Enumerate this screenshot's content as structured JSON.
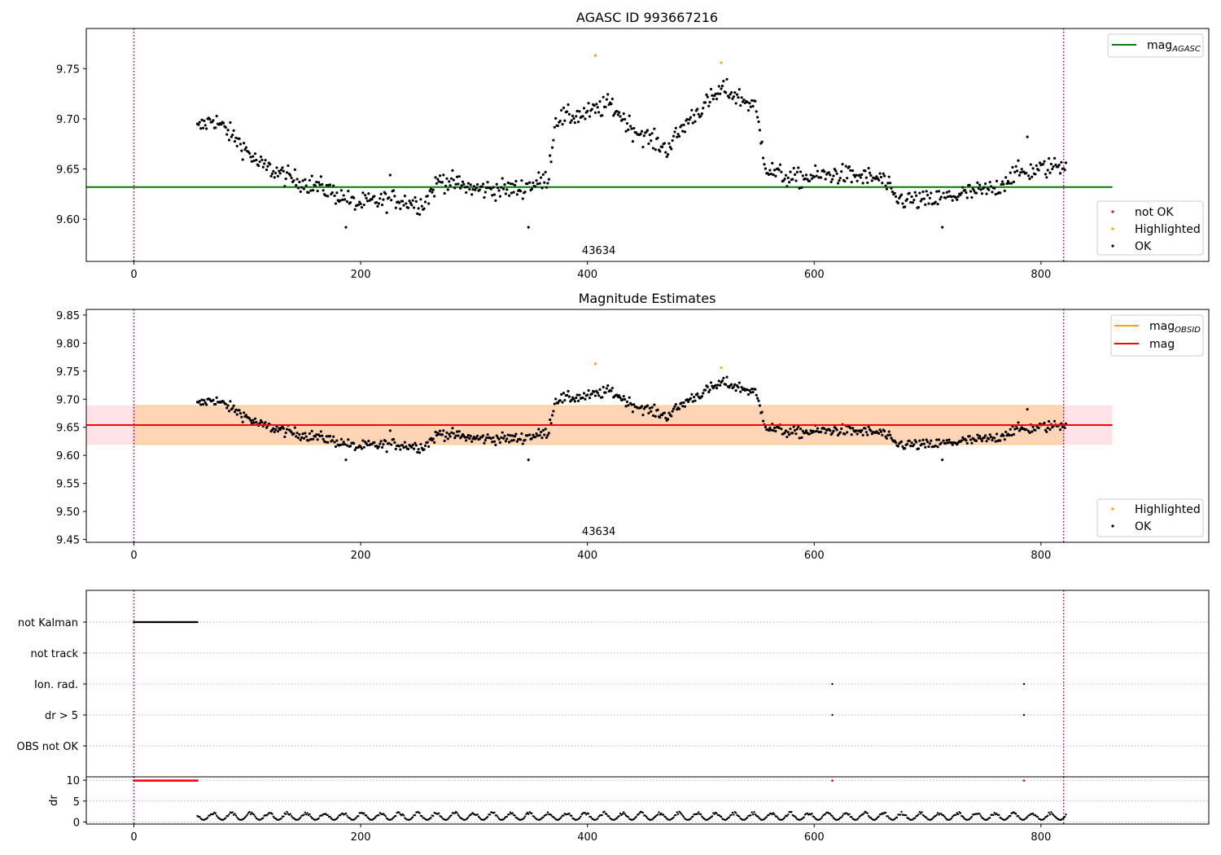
{
  "figure": {
    "title": "AGASC ID 993667216"
  },
  "chart_data": [
    {
      "id": "agasc",
      "type": "scatter",
      "title": "",
      "xlabel": "",
      "ylabel": "",
      "xlim": [
        -42,
        948
      ],
      "ylim": [
        9.558,
        9.79
      ],
      "xticks": [
        0,
        200,
        400,
        600,
        800
      ],
      "yticks": [
        9.6,
        9.65,
        9.7,
        9.75
      ],
      "ytick_format": 2,
      "grid": false,
      "obsid_label": "43634",
      "obsid_x": 410,
      "vlines": [
        0,
        820
      ],
      "hline": {
        "y": 9.632,
        "x": [
          -42,
          863
        ],
        "color": "#008000",
        "label": "mag",
        "subscript": "AGASC"
      },
      "legend_upper": {
        "placement": "top-right",
        "entries": [
          {
            "kind": "line",
            "color": "#008000",
            "label": "mag",
            "subscript": "AGASC"
          }
        ]
      },
      "legend_lower": {
        "placement": "bottom-right",
        "entries": [
          {
            "kind": "dot",
            "color": "#ff0000",
            "label": "not OK"
          },
          {
            "kind": "dot",
            "color": "#ffa500",
            "label": "Highlighted"
          },
          {
            "kind": "dot",
            "color": "#000000",
            "label": "OK"
          }
        ]
      },
      "highlighted": [
        {
          "x": 407,
          "y": 9.763
        },
        {
          "x": 518,
          "y": 9.756
        }
      ]
    },
    {
      "id": "estimates",
      "type": "scatter",
      "title": "Magnitude Estimates",
      "xlabel": "",
      "ylabel": "",
      "xlim": [
        -42,
        948
      ],
      "ylim": [
        9.445,
        9.86
      ],
      "xticks": [
        0,
        200,
        400,
        600,
        800
      ],
      "yticks": [
        9.45,
        9.5,
        9.55,
        9.6,
        9.65,
        9.7,
        9.75,
        9.8,
        9.85
      ],
      "ytick_format": 2,
      "grid": false,
      "obsid_label": "43634",
      "obsid_x": 410,
      "vlines": [
        0,
        820
      ],
      "mag": 9.654,
      "band_full": {
        "lo": 9.619,
        "hi": 9.689,
        "x": [
          -42,
          863
        ],
        "color": "#ffc0cb"
      },
      "band_obsid": {
        "lo": 9.619,
        "hi": 9.689,
        "x": [
          0,
          820
        ],
        "color": "#ffa500"
      },
      "hline": {
        "y": 9.654,
        "x": [
          -42,
          863
        ],
        "color": "#ff0000",
        "label": "mag"
      },
      "legend_upper": {
        "placement": "top-right",
        "entries": [
          {
            "kind": "line",
            "color": "#ffa500",
            "label": "mag",
            "subscript": "OBSID"
          },
          {
            "kind": "line",
            "color": "#ff0000",
            "label": "mag"
          }
        ]
      },
      "legend_lower": {
        "placement": "bottom-right",
        "entries": [
          {
            "kind": "dot",
            "color": "#ffa500",
            "label": "Highlighted"
          },
          {
            "kind": "dot",
            "color": "#000000",
            "label": "OK"
          }
        ]
      },
      "highlighted": [
        {
          "x": 407,
          "y": 9.763
        },
        {
          "x": 518,
          "y": 9.756
        }
      ]
    },
    {
      "id": "flags",
      "type": "scatter",
      "title": "",
      "xlim": [
        -42,
        948
      ],
      "categories": [
        "not Kalman",
        "not track",
        "Ion. rad.",
        "dr > 5",
        "OBS not OK"
      ],
      "grid": true,
      "vlines": [
        0,
        820
      ],
      "not_kalman_range": [
        0,
        56
      ],
      "ion_rad_x": [
        616,
        785
      ],
      "dr5_x": [
        616,
        785
      ]
    },
    {
      "id": "dr",
      "type": "scatter",
      "title": "",
      "xlabel": "",
      "ylabel": "dr",
      "xlim": [
        -42,
        948
      ],
      "ylim": [
        -0.5,
        10.8
      ],
      "xticks": [
        0,
        200,
        400,
        600,
        800
      ],
      "yticks": [
        0,
        5,
        10
      ],
      "ytick_format": 0,
      "grid": true,
      "vlines": [
        0,
        820
      ],
      "high_dr_range": [
        0,
        56
      ],
      "high_dr_value": 9.9,
      "high_dr_extra": [
        616,
        785
      ],
      "low_dr_range": [
        56,
        822
      ],
      "low_dr_typical": [
        0.5,
        2.5
      ]
    }
  ],
  "series_note": "OK points: x from 56 to 822, magnitude varies between about 9.59 and 9.74"
}
